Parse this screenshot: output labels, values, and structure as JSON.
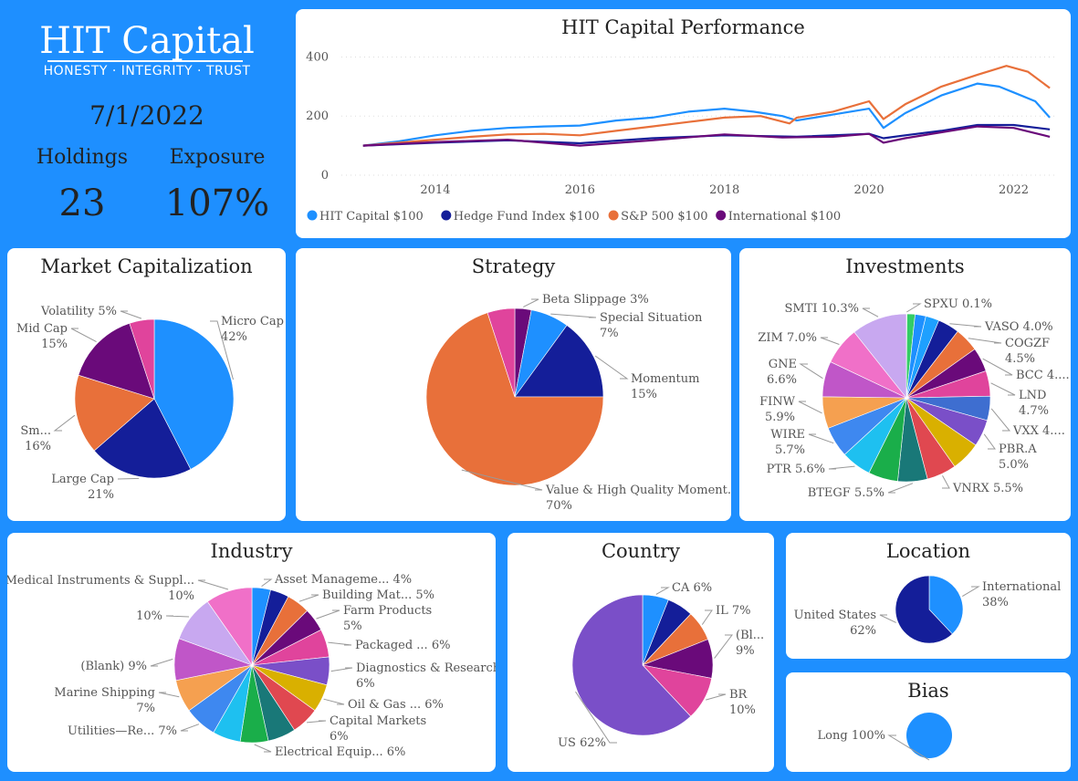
{
  "brand": {
    "logo_text": "HIT Capital",
    "tagline": "HONESTY · INTEGRITY · TRUST",
    "date": "7/1/2022",
    "holdings_label": "Holdings",
    "holdings_value": "23",
    "exposure_label": "Exposure",
    "exposure_value": "107%"
  },
  "chart_data": [
    {
      "id": "performance",
      "type": "line",
      "title": "HIT Capital Performance",
      "x_ticks": [
        "2014",
        "2016",
        "2018",
        "2020",
        "2022"
      ],
      "y_ticks": [
        "0",
        "200",
        "400"
      ],
      "ylim": [
        0,
        420
      ],
      "xlim": [
        2012.7,
        2022.6
      ],
      "grid": true,
      "legend_position": "bottom",
      "series": [
        {
          "name": "HIT Capital $100",
          "color": "#1E90FF",
          "points": [
            [
              2013.0,
              100
            ],
            [
              2013.5,
              115
            ],
            [
              2014.0,
              135
            ],
            [
              2014.5,
              150
            ],
            [
              2015.0,
              160
            ],
            [
              2015.5,
              165
            ],
            [
              2016.0,
              168
            ],
            [
              2016.5,
              185
            ],
            [
              2017.0,
              195
            ],
            [
              2017.5,
              215
            ],
            [
              2018.0,
              225
            ],
            [
              2018.4,
              215
            ],
            [
              2018.8,
              200
            ],
            [
              2019.0,
              185
            ],
            [
              2019.5,
              205
            ],
            [
              2020.0,
              225
            ],
            [
              2020.2,
              160
            ],
            [
              2020.5,
              210
            ],
            [
              2021.0,
              270
            ],
            [
              2021.5,
              310
            ],
            [
              2021.8,
              300
            ],
            [
              2022.0,
              280
            ],
            [
              2022.3,
              250
            ],
            [
              2022.5,
              195
            ]
          ]
        },
        {
          "name": "Hedge Fund Index $100",
          "color": "#141E99",
          "points": [
            [
              2013.0,
              100
            ],
            [
              2014.0,
              110
            ],
            [
              2015.0,
              118
            ],
            [
              2016.0,
              108
            ],
            [
              2017.0,
              125
            ],
            [
              2018.0,
              135
            ],
            [
              2019.0,
              130
            ],
            [
              2020.0,
              140
            ],
            [
              2020.2,
              125
            ],
            [
              2020.5,
              135
            ],
            [
              2021.0,
              150
            ],
            [
              2021.5,
              170
            ],
            [
              2022.0,
              170
            ],
            [
              2022.5,
              155
            ]
          ]
        },
        {
          "name": "S&P 500 $100",
          "color": "#E8703A",
          "points": [
            [
              2013.0,
              100
            ],
            [
              2013.5,
              110
            ],
            [
              2014.0,
              120
            ],
            [
              2014.5,
              130
            ],
            [
              2015.0,
              138
            ],
            [
              2015.5,
              140
            ],
            [
              2016.0,
              135
            ],
            [
              2016.5,
              150
            ],
            [
              2017.0,
              165
            ],
            [
              2017.5,
              180
            ],
            [
              2018.0,
              195
            ],
            [
              2018.5,
              200
            ],
            [
              2018.9,
              175
            ],
            [
              2019.0,
              195
            ],
            [
              2019.5,
              215
            ],
            [
              2020.0,
              250
            ],
            [
              2020.2,
              190
            ],
            [
              2020.5,
              240
            ],
            [
              2021.0,
              300
            ],
            [
              2021.5,
              340
            ],
            [
              2021.9,
              370
            ],
            [
              2022.2,
              350
            ],
            [
              2022.5,
              295
            ]
          ]
        },
        {
          "name": "International $100",
          "color": "#6A0A7A",
          "points": [
            [
              2013.0,
              100
            ],
            [
              2014.0,
              112
            ],
            [
              2015.0,
              120
            ],
            [
              2016.0,
              100
            ],
            [
              2017.0,
              118
            ],
            [
              2018.0,
              138
            ],
            [
              2018.8,
              128
            ],
            [
              2019.5,
              130
            ],
            [
              2020.0,
              140
            ],
            [
              2020.2,
              110
            ],
            [
              2020.5,
              125
            ],
            [
              2021.0,
              145
            ],
            [
              2021.5,
              165
            ],
            [
              2022.0,
              160
            ],
            [
              2022.5,
              130
            ]
          ]
        }
      ]
    },
    {
      "id": "market_cap",
      "type": "pie",
      "title": "Market Capitalization",
      "slices": [
        {
          "label": "Micro Cap",
          "value": 42,
          "pct": "42%",
          "color": "#1E90FF"
        },
        {
          "label": "Large Cap",
          "value": 21,
          "pct": "21%",
          "color": "#141E99"
        },
        {
          "label": "Sm...",
          "value": 16,
          "pct": "16%",
          "color": "#E8703A"
        },
        {
          "label": "Mid Cap",
          "value": 15,
          "pct": "15%",
          "color": "#6A0A7A"
        },
        {
          "label": "Volatility",
          "value": 5,
          "pct": "5%",
          "color": "#E0449C"
        }
      ]
    },
    {
      "id": "strategy",
      "type": "pie",
      "title": "Strategy",
      "slices": [
        {
          "label": "Beta Slippage",
          "value": 3,
          "pct": "3%",
          "color": "#6A0A7A"
        },
        {
          "label": "Special Situation",
          "value": 7,
          "pct": "7%",
          "color": "#1E90FF"
        },
        {
          "label": "Momentum",
          "value": 15,
          "pct": "15%",
          "color": "#141E99"
        },
        {
          "label": "Value & High Quality Moment...",
          "value": 70,
          "pct": "70%",
          "color": "#E8703A"
        },
        {
          "label": "",
          "value": 5,
          "pct": "",
          "color": "#E0449C"
        }
      ]
    },
    {
      "id": "investments",
      "type": "pie",
      "title": "Investments",
      "slices": [
        {
          "label": "SPXU",
          "value": 0.1,
          "pct": "0.1%",
          "color": "#D9B000"
        },
        {
          "label": "",
          "value": 1.5,
          "pct": "",
          "color": "#33CC66"
        },
        {
          "label": "",
          "value": 2.0,
          "pct": "",
          "color": "#1E90FF"
        },
        {
          "label": "",
          "value": 2.5,
          "pct": "",
          "color": "#1EA0FF"
        },
        {
          "label": "VASO",
          "value": 4.0,
          "pct": "4.0%",
          "color": "#141E99"
        },
        {
          "label": "COGZF",
          "value": 4.5,
          "pct": "4.5%",
          "color": "#E8703A"
        },
        {
          "label": "BCC 4....",
          "value": 4.5,
          "pct": "",
          "color": "#6A0A7A"
        },
        {
          "label": "LND",
          "value": 4.7,
          "pct": "4.7%",
          "color": "#E0449C"
        },
        {
          "label": "VXX 4....",
          "value": 4.5,
          "pct": "",
          "color": "#3E6ED0"
        },
        {
          "label": "PBR.A",
          "value": 5.0,
          "pct": "5.0%",
          "color": "#7A4FC8"
        },
        {
          "label": "",
          "value": 5.5,
          "pct": "",
          "color": "#D9B000"
        },
        {
          "label": "VNRX",
          "value": 5.5,
          "pct": "5.5%",
          "color": "#E04850"
        },
        {
          "label": "BTEGF",
          "value": 5.5,
          "pct": "5.5%",
          "color": "#197878"
        },
        {
          "label": "",
          "value": 5.5,
          "pct": "",
          "color": "#1AAE4A"
        },
        {
          "label": "PTR",
          "value": 5.6,
          "pct": "5.6%",
          "color": "#1EC0F0"
        },
        {
          "label": "WIRE",
          "value": 5.7,
          "pct": "5.7%",
          "color": "#3E88F0"
        },
        {
          "label": "FINW",
          "value": 5.9,
          "pct": "5.9%",
          "color": "#F5A050"
        },
        {
          "label": "GNE",
          "value": 6.6,
          "pct": "6.6%",
          "color": "#C056C8"
        },
        {
          "label": "ZIM",
          "value": 7.0,
          "pct": "7.0%",
          "color": "#F070C8"
        },
        {
          "label": "SMTI",
          "value": 10.3,
          "pct": "10.3%",
          "color": "#C8A8F0"
        }
      ]
    },
    {
      "id": "industry",
      "type": "pie",
      "title": "Industry",
      "slices": [
        {
          "label": "Asset Manageme...",
          "value": 4,
          "pct": "4%",
          "color": "#1E90FF"
        },
        {
          "label": "",
          "value": 4,
          "pct": "",
          "color": "#141E99"
        },
        {
          "label": "Building Mat...",
          "value": 5,
          "pct": "5%",
          "color": "#E8703A"
        },
        {
          "label": "Farm Products",
          "value": 5,
          "pct": "5%",
          "color": "#6A0A7A"
        },
        {
          "label": "Packaged ...",
          "value": 6,
          "pct": "6%",
          "color": "#E0449C"
        },
        {
          "label": "Diagnostics & Research",
          "value": 6,
          "pct": "6%",
          "color": "#7A4FC8"
        },
        {
          "label": "Oil & Gas ...",
          "value": 6,
          "pct": "6%",
          "color": "#D9B000"
        },
        {
          "label": "Capital Markets",
          "value": 6,
          "pct": "6%",
          "color": "#E04850"
        },
        {
          "label": "",
          "value": 6,
          "pct": "",
          "color": "#197878"
        },
        {
          "label": "Electrical Equip...",
          "value": 6,
          "pct": "6%",
          "color": "#1AAE4A"
        },
        {
          "label": "",
          "value": 6,
          "pct": "",
          "color": "#1EC0F0"
        },
        {
          "label": "Utilities—Re...",
          "value": 7,
          "pct": "7%",
          "color": "#3E88F0"
        },
        {
          "label": "Marine Shipping",
          "value": 7,
          "pct": "7%",
          "color": "#F5A050"
        },
        {
          "label": "(Blank)",
          "value": 9,
          "pct": "9%",
          "color": "#C056C8"
        },
        {
          "label": "",
          "value": 10,
          "pct": "10%",
          "color": "#C8A8F0"
        },
        {
          "label": "Medical Instruments & Suppl...",
          "value": 10,
          "pct": "10%",
          "color": "#F070C8"
        }
      ]
    },
    {
      "id": "country",
      "type": "pie",
      "title": "Country",
      "slices": [
        {
          "label": "CA",
          "value": 6,
          "pct": "6%",
          "color": "#1E90FF"
        },
        {
          "label": "",
          "value": 6,
          "pct": "",
          "color": "#141E99"
        },
        {
          "label": "IL",
          "value": 7,
          "pct": "7%",
          "color": "#E8703A"
        },
        {
          "label": "(Bl...",
          "value": 9,
          "pct": "9%",
          "color": "#6A0A7A"
        },
        {
          "label": "BR",
          "value": 10,
          "pct": "10%",
          "color": "#E0449C"
        },
        {
          "label": "US",
          "value": 62,
          "pct": "62%",
          "color": "#7A4FC8"
        }
      ]
    },
    {
      "id": "location",
      "type": "pie",
      "title": "Location",
      "slices": [
        {
          "label": "International",
          "value": 38,
          "pct": "38%",
          "color": "#1E90FF"
        },
        {
          "label": "United States",
          "value": 62,
          "pct": "62%",
          "color": "#141E99"
        }
      ]
    },
    {
      "id": "bias",
      "type": "pie",
      "title": "Bias",
      "slices": [
        {
          "label": "Long",
          "value": 100,
          "pct": "100%",
          "color": "#1E90FF"
        }
      ]
    }
  ]
}
